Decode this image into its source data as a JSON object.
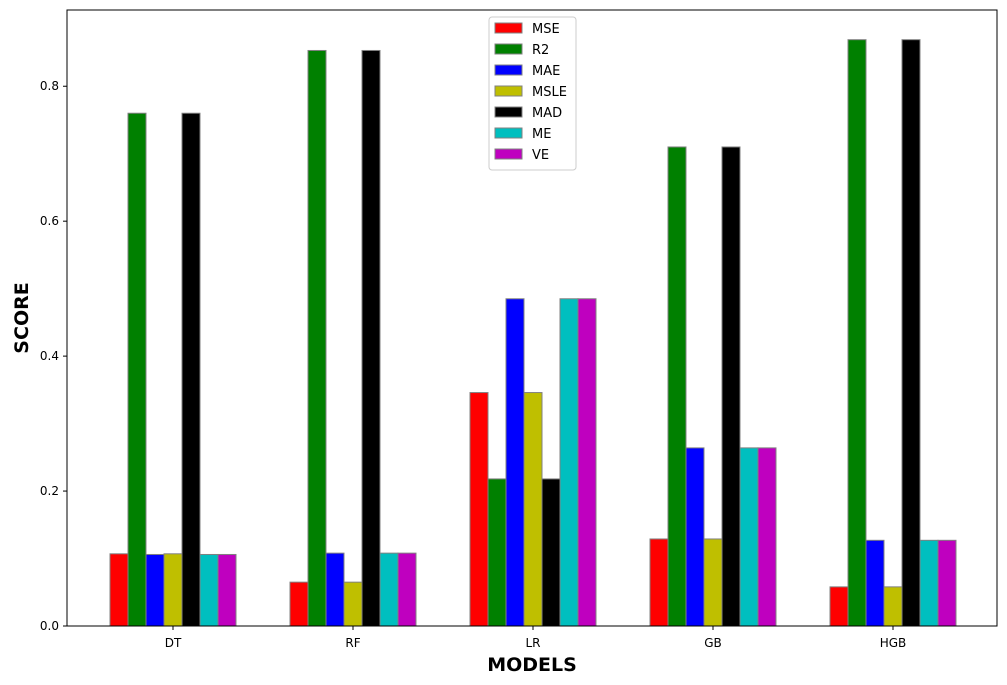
{
  "chart_data": {
    "type": "bar",
    "xlabel": "MODELS",
    "ylabel": "SCORE",
    "categories": [
      "DT",
      "RF",
      "LR",
      "GB",
      "HGB"
    ],
    "ylim": [
      0,
      0.913
    ],
    "yticks": [
      0.0,
      0.2,
      0.4,
      0.6,
      0.8
    ],
    "ytick_labels": [
      "0.0",
      "0.2",
      "0.4",
      "0.6",
      "0.8"
    ],
    "grid": false,
    "legend_position": "top-center",
    "series": [
      {
        "name": "MSE",
        "color": "#ff0000",
        "values": [
          0.107,
          0.065,
          0.346,
          0.129,
          0.058
        ]
      },
      {
        "name": "R2",
        "color": "#008000",
        "values": [
          0.76,
          0.853,
          0.218,
          0.71,
          0.869
        ]
      },
      {
        "name": "MAE",
        "color": "#0000ff",
        "values": [
          0.106,
          0.108,
          0.485,
          0.264,
          0.127
        ]
      },
      {
        "name": "MSLE",
        "color": "#bfbf00",
        "values": [
          0.107,
          0.065,
          0.346,
          0.129,
          0.058
        ]
      },
      {
        "name": "MAD",
        "color": "#000000",
        "values": [
          0.76,
          0.853,
          0.218,
          0.71,
          0.869
        ]
      },
      {
        "name": "ME",
        "color": "#00bfbf",
        "values": [
          0.106,
          0.108,
          0.485,
          0.264,
          0.127
        ]
      },
      {
        "name": "VE",
        "color": "#bf00bf",
        "values": [
          0.106,
          0.108,
          0.485,
          0.264,
          0.127
        ]
      }
    ]
  }
}
